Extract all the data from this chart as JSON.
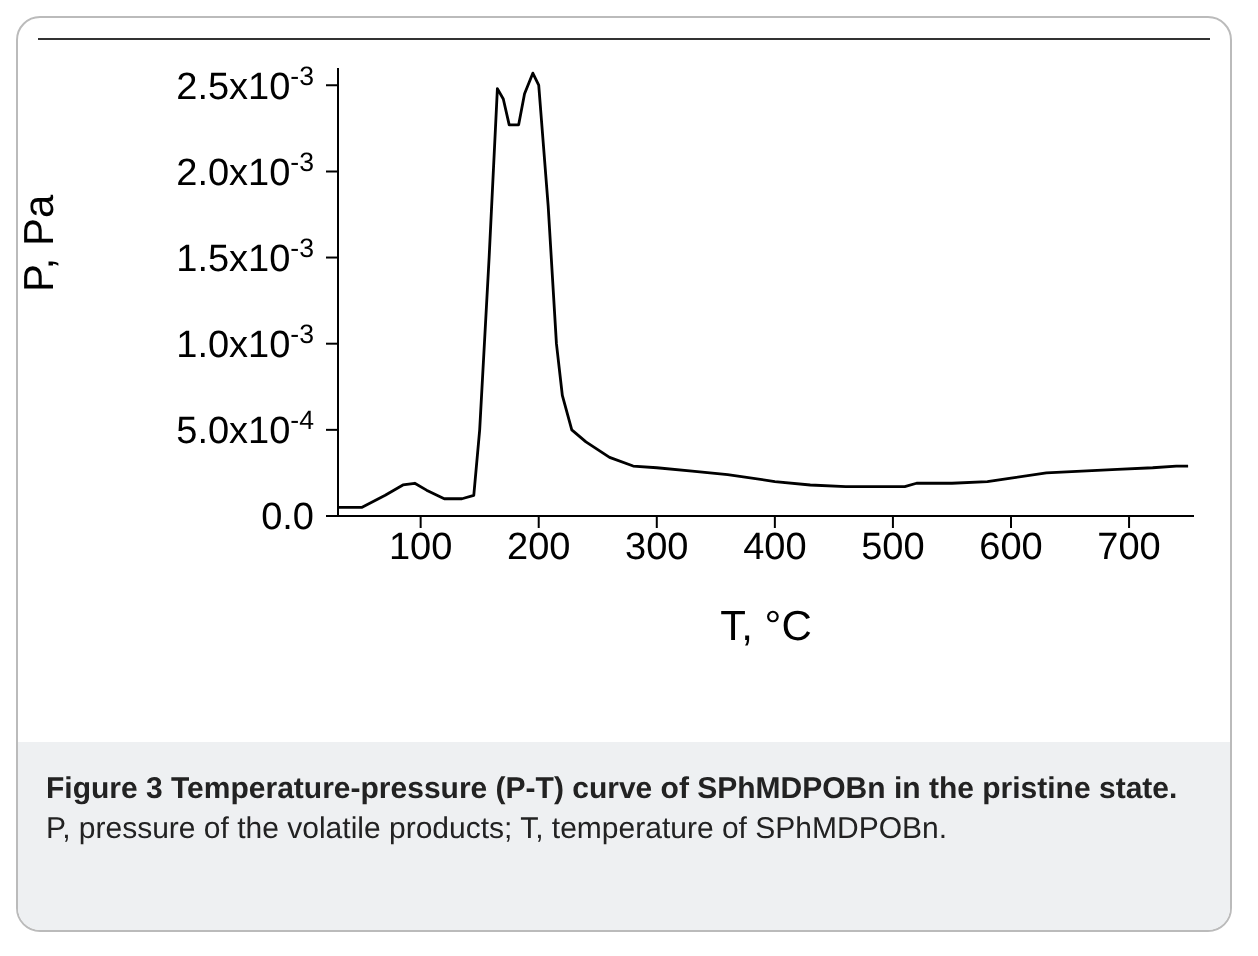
{
  "chart_data": {
    "type": "line",
    "xlabel": "T, °C",
    "ylabel": "P, Pa",
    "x": [
      30,
      50,
      70,
      85,
      95,
      105,
      120,
      135,
      145,
      150,
      158,
      165,
      170,
      175,
      183,
      188,
      195,
      200,
      208,
      215,
      220,
      228,
      240,
      260,
      280,
      300,
      330,
      360,
      400,
      430,
      460,
      490,
      510,
      520,
      550,
      580,
      600,
      630,
      660,
      690,
      720,
      740,
      750
    ],
    "series": [
      {
        "color": "#000000",
        "values": [
          5e-05,
          5e-05,
          0.00012,
          0.00018,
          0.00019,
          0.00015,
          0.0001,
          0.0001,
          0.00012,
          0.0005,
          0.0015,
          0.00248,
          0.00242,
          0.00227,
          0.00227,
          0.00245,
          0.00257,
          0.0025,
          0.0018,
          0.001,
          0.0007,
          0.0005,
          0.00043,
          0.00034,
          0.00029,
          0.00028,
          0.00026,
          0.00024,
          0.0002,
          0.00018,
          0.00017,
          0.00017,
          0.00017,
          0.00019,
          0.00019,
          0.0002,
          0.00022,
          0.00025,
          0.00026,
          0.00027,
          0.00028,
          0.00029,
          0.00029
        ]
      }
    ],
    "xlim": [
      30,
      755
    ],
    "xticks": [
      100,
      200,
      300,
      400,
      500,
      600,
      700
    ],
    "ylim": [
      0,
      0.0026
    ],
    "yticks": [
      {
        "value": 0,
        "label": "0.0"
      },
      {
        "value": 0.0005,
        "label": "5.0x10$^{-4}$"
      },
      {
        "value": 0.001,
        "label": "1.0x10$^{-3}$"
      },
      {
        "value": 0.0015,
        "label": "1.5x10$^{-3}$"
      },
      {
        "value": 0.002,
        "label": "2.0x10$^{-3}$"
      },
      {
        "value": 0.0025,
        "label": "2.5x10$^{-3}$"
      }
    ],
    "grid": false,
    "marker": "none",
    "line_style": "solid",
    "annotations": [
      "Figure 3 Temperature-pressure (P-T) curve of SPhMDPOBn in the pristine state.",
      "P, pressure of the volatile products; T, temperature of SPhMDPOBn."
    ]
  }
}
